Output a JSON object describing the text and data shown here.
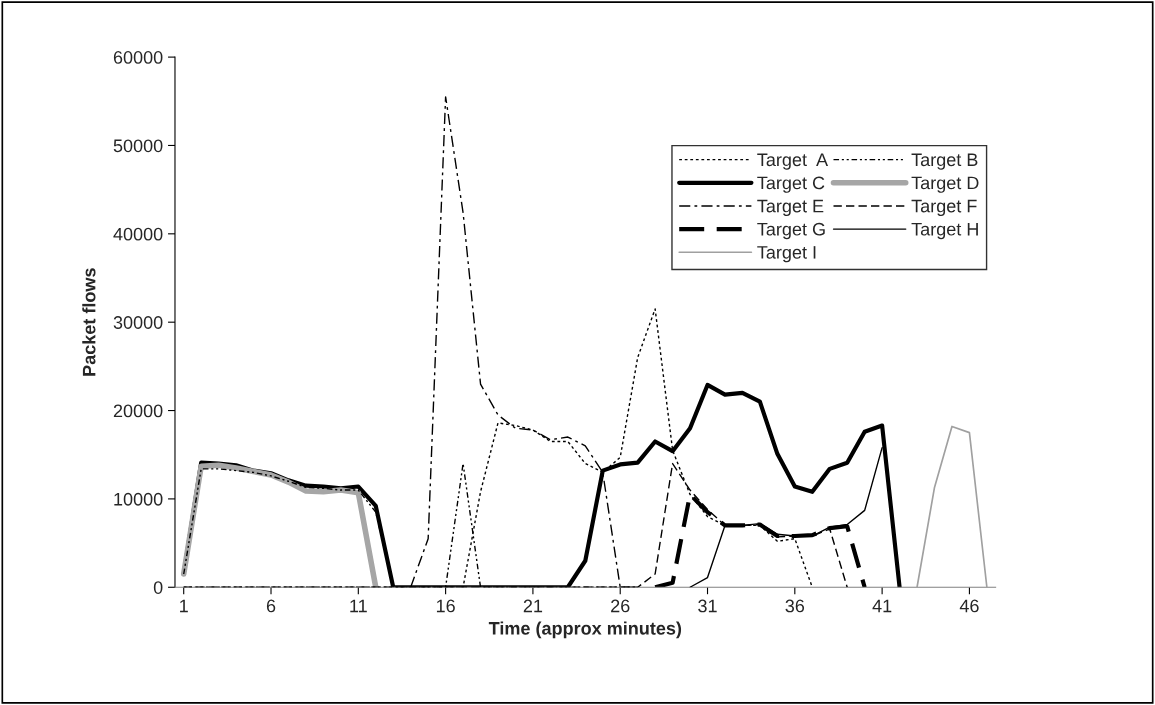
{
  "chart_data": {
    "type": "line",
    "xlabel": "Time (approx minutes)",
    "ylabel": "Packet flows",
    "x": [
      1,
      2,
      3,
      4,
      5,
      6,
      7,
      8,
      9,
      10,
      11,
      12,
      13,
      14,
      15,
      16,
      17,
      18,
      19,
      20,
      21,
      22,
      23,
      24,
      25,
      26,
      27,
      28,
      29,
      30,
      31,
      32,
      33,
      34,
      35,
      36,
      37,
      38,
      39,
      40,
      41,
      42,
      43,
      44,
      45,
      46,
      47
    ],
    "xlim": [
      0.5,
      47.5
    ],
    "xticks": [
      1,
      6,
      11,
      16,
      21,
      26,
      31,
      36,
      41,
      46
    ],
    "ylim": [
      0,
      60000
    ],
    "yticks": [
      0,
      10000,
      20000,
      30000,
      40000,
      50000,
      60000
    ],
    "grid": false,
    "legend": "top right",
    "marker": "none",
    "series": [
      {
        "name": "Target  A",
        "color": "#000000",
        "line_style": "dotted",
        "values": [
          0,
          0,
          0,
          0,
          0,
          0,
          0,
          0,
          0,
          0,
          0,
          0,
          0,
          0,
          0,
          0,
          0,
          10800,
          18600,
          18300,
          17800,
          16500,
          16500,
          14000,
          13000,
          14700,
          26000,
          31500,
          15500,
          10500,
          8000,
          7000,
          7000,
          7000,
          5200,
          5500,
          0,
          null,
          null,
          null,
          null,
          null,
          null,
          null,
          null,
          null,
          null
        ]
      },
      {
        "name": "Target B",
        "color": "#000000",
        "line_style": "dashdotdot",
        "values": [
          1500,
          13400,
          13400,
          13200,
          13000,
          12600,
          12000,
          11300,
          11200,
          11000,
          11000,
          8500,
          0,
          0,
          0,
          0,
          14000,
          0,
          0,
          0,
          0,
          0,
          0,
          0,
          0,
          0,
          0,
          null,
          null,
          null,
          null,
          null,
          null,
          null,
          null,
          null,
          null,
          null,
          null,
          null,
          null,
          null,
          null,
          null,
          null,
          null,
          null
        ]
      },
      {
        "name": "Target C",
        "color": "#000000",
        "line_style": "solid",
        "values": [
          1500,
          14100,
          14000,
          13800,
          13200,
          12900,
          12100,
          11500,
          11400,
          11200,
          11400,
          9200,
          0,
          0,
          0,
          0,
          0,
          0,
          0,
          0,
          0,
          0,
          0,
          3000,
          13200,
          13900,
          14100,
          16500,
          15400,
          18000,
          22900,
          21800,
          22000,
          21000,
          15100,
          11400,
          10800,
          13400,
          14100,
          17600,
          18300,
          0,
          null,
          null,
          null,
          null,
          null
        ]
      },
      {
        "name": "Target D",
        "color": "#a6a6a6",
        "line_style": "solid",
        "values": [
          1500,
          13700,
          13800,
          13500,
          13100,
          12700,
          11900,
          10900,
          10800,
          11000,
          10700,
          0,
          null,
          null,
          null,
          null,
          null,
          null,
          null,
          null,
          null,
          null,
          null,
          null,
          null,
          null,
          null,
          null,
          null,
          null,
          null,
          null,
          null,
          null,
          null,
          null,
          null,
          null,
          null,
          null,
          null,
          null,
          null,
          null,
          null,
          null,
          null
        ]
      },
      {
        "name": "Target E",
        "color": "#000000",
        "line_style": "dashdot",
        "values": [
          null,
          null,
          null,
          null,
          null,
          null,
          null,
          null,
          null,
          null,
          null,
          null,
          null,
          0,
          5500,
          55500,
          42400,
          23000,
          19500,
          18000,
          17800,
          16700,
          17000,
          16000,
          13000,
          0,
          0,
          null,
          null,
          null,
          null,
          null,
          null,
          null,
          null,
          null,
          null,
          null,
          null,
          null,
          null,
          null,
          null,
          null,
          null,
          null,
          null
        ]
      },
      {
        "name": "Target F",
        "color": "#000000",
        "line_style": "dashed",
        "values": [
          0,
          0,
          0,
          0,
          0,
          0,
          0,
          0,
          0,
          0,
          0,
          0,
          0,
          0,
          0,
          0,
          0,
          0,
          0,
          0,
          0,
          0,
          0,
          0,
          0,
          0,
          0,
          1500,
          14000,
          11000,
          8800,
          7000,
          7000,
          7100,
          5700,
          5800,
          5800,
          6600,
          0,
          null,
          null,
          null,
          null,
          null,
          null,
          null,
          null
        ]
      },
      {
        "name": "Target G",
        "color": "#000000",
        "line_style": "dashed",
        "values": [
          null,
          null,
          null,
          null,
          null,
          null,
          null,
          null,
          null,
          null,
          null,
          null,
          null,
          null,
          null,
          null,
          null,
          null,
          null,
          null,
          null,
          null,
          null,
          null,
          null,
          null,
          null,
          0,
          500,
          10500,
          8500,
          7000,
          7000,
          7100,
          5800,
          5800,
          5900,
          6700,
          6900,
          0,
          null,
          null,
          null,
          null,
          null,
          null,
          null
        ]
      },
      {
        "name": "Target H",
        "color": "#000000",
        "line_style": "solid",
        "values": [
          null,
          null,
          null,
          null,
          null,
          null,
          null,
          null,
          null,
          null,
          null,
          null,
          null,
          null,
          null,
          null,
          null,
          null,
          null,
          null,
          null,
          null,
          null,
          null,
          null,
          null,
          null,
          null,
          null,
          0,
          1100,
          7000,
          7000,
          7200,
          6000,
          5800,
          5800,
          6800,
          7100,
          8700,
          15800,
          null,
          null,
          null,
          null,
          null,
          null
        ]
      },
      {
        "name": "Target I",
        "color": "#a0a0a0",
        "line_style": "solid",
        "values": [
          null,
          null,
          null,
          null,
          null,
          null,
          null,
          null,
          null,
          null,
          null,
          null,
          null,
          null,
          null,
          null,
          null,
          null,
          null,
          null,
          null,
          null,
          null,
          null,
          null,
          null,
          null,
          null,
          null,
          null,
          null,
          null,
          null,
          null,
          null,
          null,
          null,
          null,
          null,
          null,
          null,
          null,
          0,
          11300,
          18200,
          17500,
          0
        ]
      }
    ]
  }
}
